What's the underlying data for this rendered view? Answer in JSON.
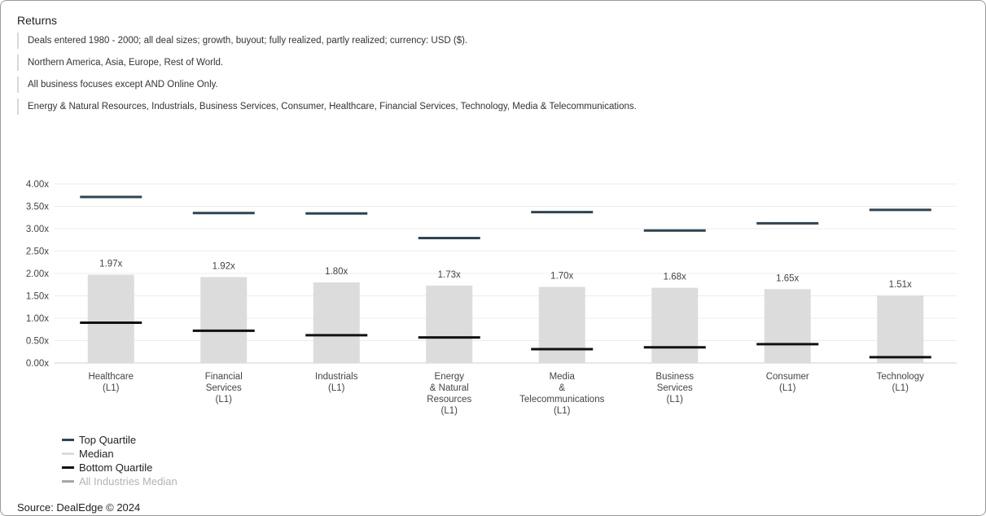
{
  "title": "Returns",
  "filters": [
    "Deals entered 1980 - 2000; all deal sizes; growth, buyout; fully realized, partly realized; currency: USD ($).",
    "Northern America, Asia, Europe, Rest of World.",
    "All business focuses except AND Online Only.",
    "Energy & Natural Resources, Industrials, Business Services, Consumer, Healthcare, Financial Services, Technology, Media & Telecommunications."
  ],
  "legend": [
    {
      "label": "Top Quartile",
      "color": "#2d4454"
    },
    {
      "label": "Median",
      "color": "#dcdcdc"
    },
    {
      "label": "Bottom Quartile",
      "color": "#111111"
    },
    {
      "label": "All Industries Median",
      "color": "#a6a6a6",
      "muted": true
    }
  ],
  "source": "Source: DealEdge © 2024",
  "chart_data": {
    "type": "bar",
    "categories": [
      [
        "Healthcare",
        "(L1)"
      ],
      [
        "Financial",
        "Services",
        "(L1)"
      ],
      [
        "Industrials",
        "(L1)"
      ],
      [
        "Energy",
        "& Natural",
        "Resources",
        "(L1)"
      ],
      [
        "Media",
        "&",
        "Telecommunications",
        "(L1)"
      ],
      [
        "Business",
        "Services",
        "(L1)"
      ],
      [
        "Consumer",
        "(L1)"
      ],
      [
        "Technology",
        "(L1)"
      ]
    ],
    "series": [
      {
        "name": "Median",
        "values": [
          1.97,
          1.92,
          1.8,
          1.73,
          1.7,
          1.68,
          1.65,
          1.51
        ],
        "data_labels": [
          "1.97x",
          "1.92x",
          "1.80x",
          "1.73x",
          "1.70x",
          "1.68x",
          "1.65x",
          "1.51x"
        ]
      },
      {
        "name": "Top Quartile",
        "values": [
          3.71,
          3.35,
          3.34,
          2.79,
          3.37,
          2.96,
          3.12,
          3.42
        ]
      },
      {
        "name": "Bottom Quartile",
        "values": [
          0.9,
          0.72,
          0.62,
          0.57,
          0.31,
          0.35,
          0.42,
          0.13
        ]
      }
    ],
    "y_ticks": [
      "0.00x",
      "0.50x",
      "1.00x",
      "1.50x",
      "2.00x",
      "2.50x",
      "3.00x",
      "3.50x",
      "4.00x"
    ],
    "ylim": [
      0,
      4
    ],
    "grid": true,
    "legend_position": "bottom-left"
  }
}
